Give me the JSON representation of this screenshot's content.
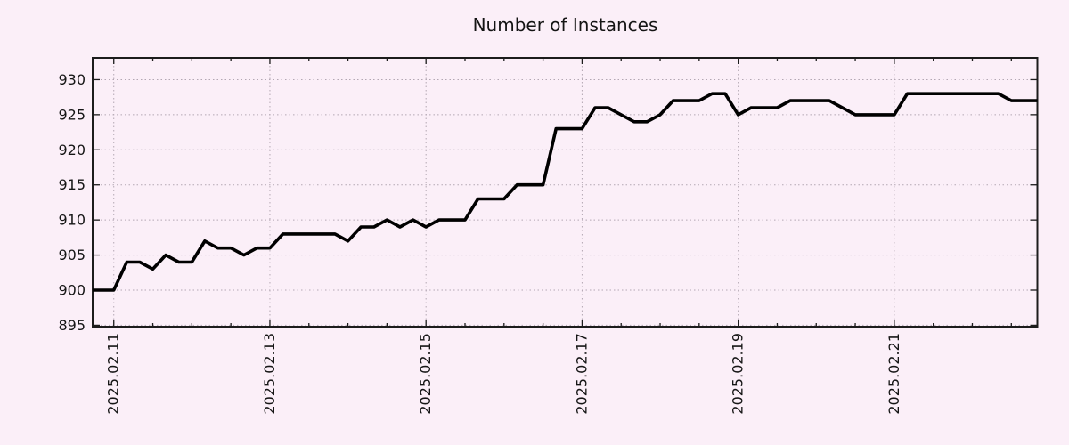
{
  "chart_data": {
    "type": "line",
    "title": "Number of Instances",
    "series": [
      {
        "name": "instances",
        "start_offset_hours": -8,
        "step_hours": 4,
        "values": [
          900,
          900,
          900,
          904,
          904,
          903,
          905,
          904,
          904,
          907,
          906,
          906,
          905,
          906,
          906,
          908,
          908,
          908,
          908,
          908,
          907,
          909,
          909,
          910,
          909,
          910,
          909,
          910,
          910,
          910,
          913,
          913,
          913,
          915,
          915,
          915,
          923,
          923,
          923,
          926,
          926,
          925,
          924,
          924,
          925,
          927,
          927,
          927,
          928,
          928,
          925,
          926,
          926,
          926,
          927,
          927,
          927,
          927,
          926,
          925,
          925,
          925,
          925,
          928,
          928,
          928,
          928,
          928,
          928,
          928,
          928,
          927,
          927,
          927
        ]
      }
    ],
    "axes": {
      "x_tick_labels": [
        "2025.02.11",
        "2025.02.13",
        "2025.02.15",
        "2025.02.17",
        "2025.02.19",
        "2025.02.21"
      ],
      "x_major_tick_hours": [
        0,
        48,
        96,
        144,
        192,
        240
      ],
      "x_minor_tick_step_hours": 12,
      "xlim_hours": [
        -6.5,
        284
      ],
      "y_ticks": [
        895,
        900,
        905,
        910,
        915,
        920,
        925,
        930
      ],
      "ylim": [
        894.8,
        933.1
      ],
      "grid": "dotted",
      "legend": "none"
    },
    "colors": {
      "background": "#fbeff8",
      "line": "#000000",
      "grid": "#b3a7b3",
      "border": "#1c1c1c",
      "text": "#161616"
    }
  }
}
